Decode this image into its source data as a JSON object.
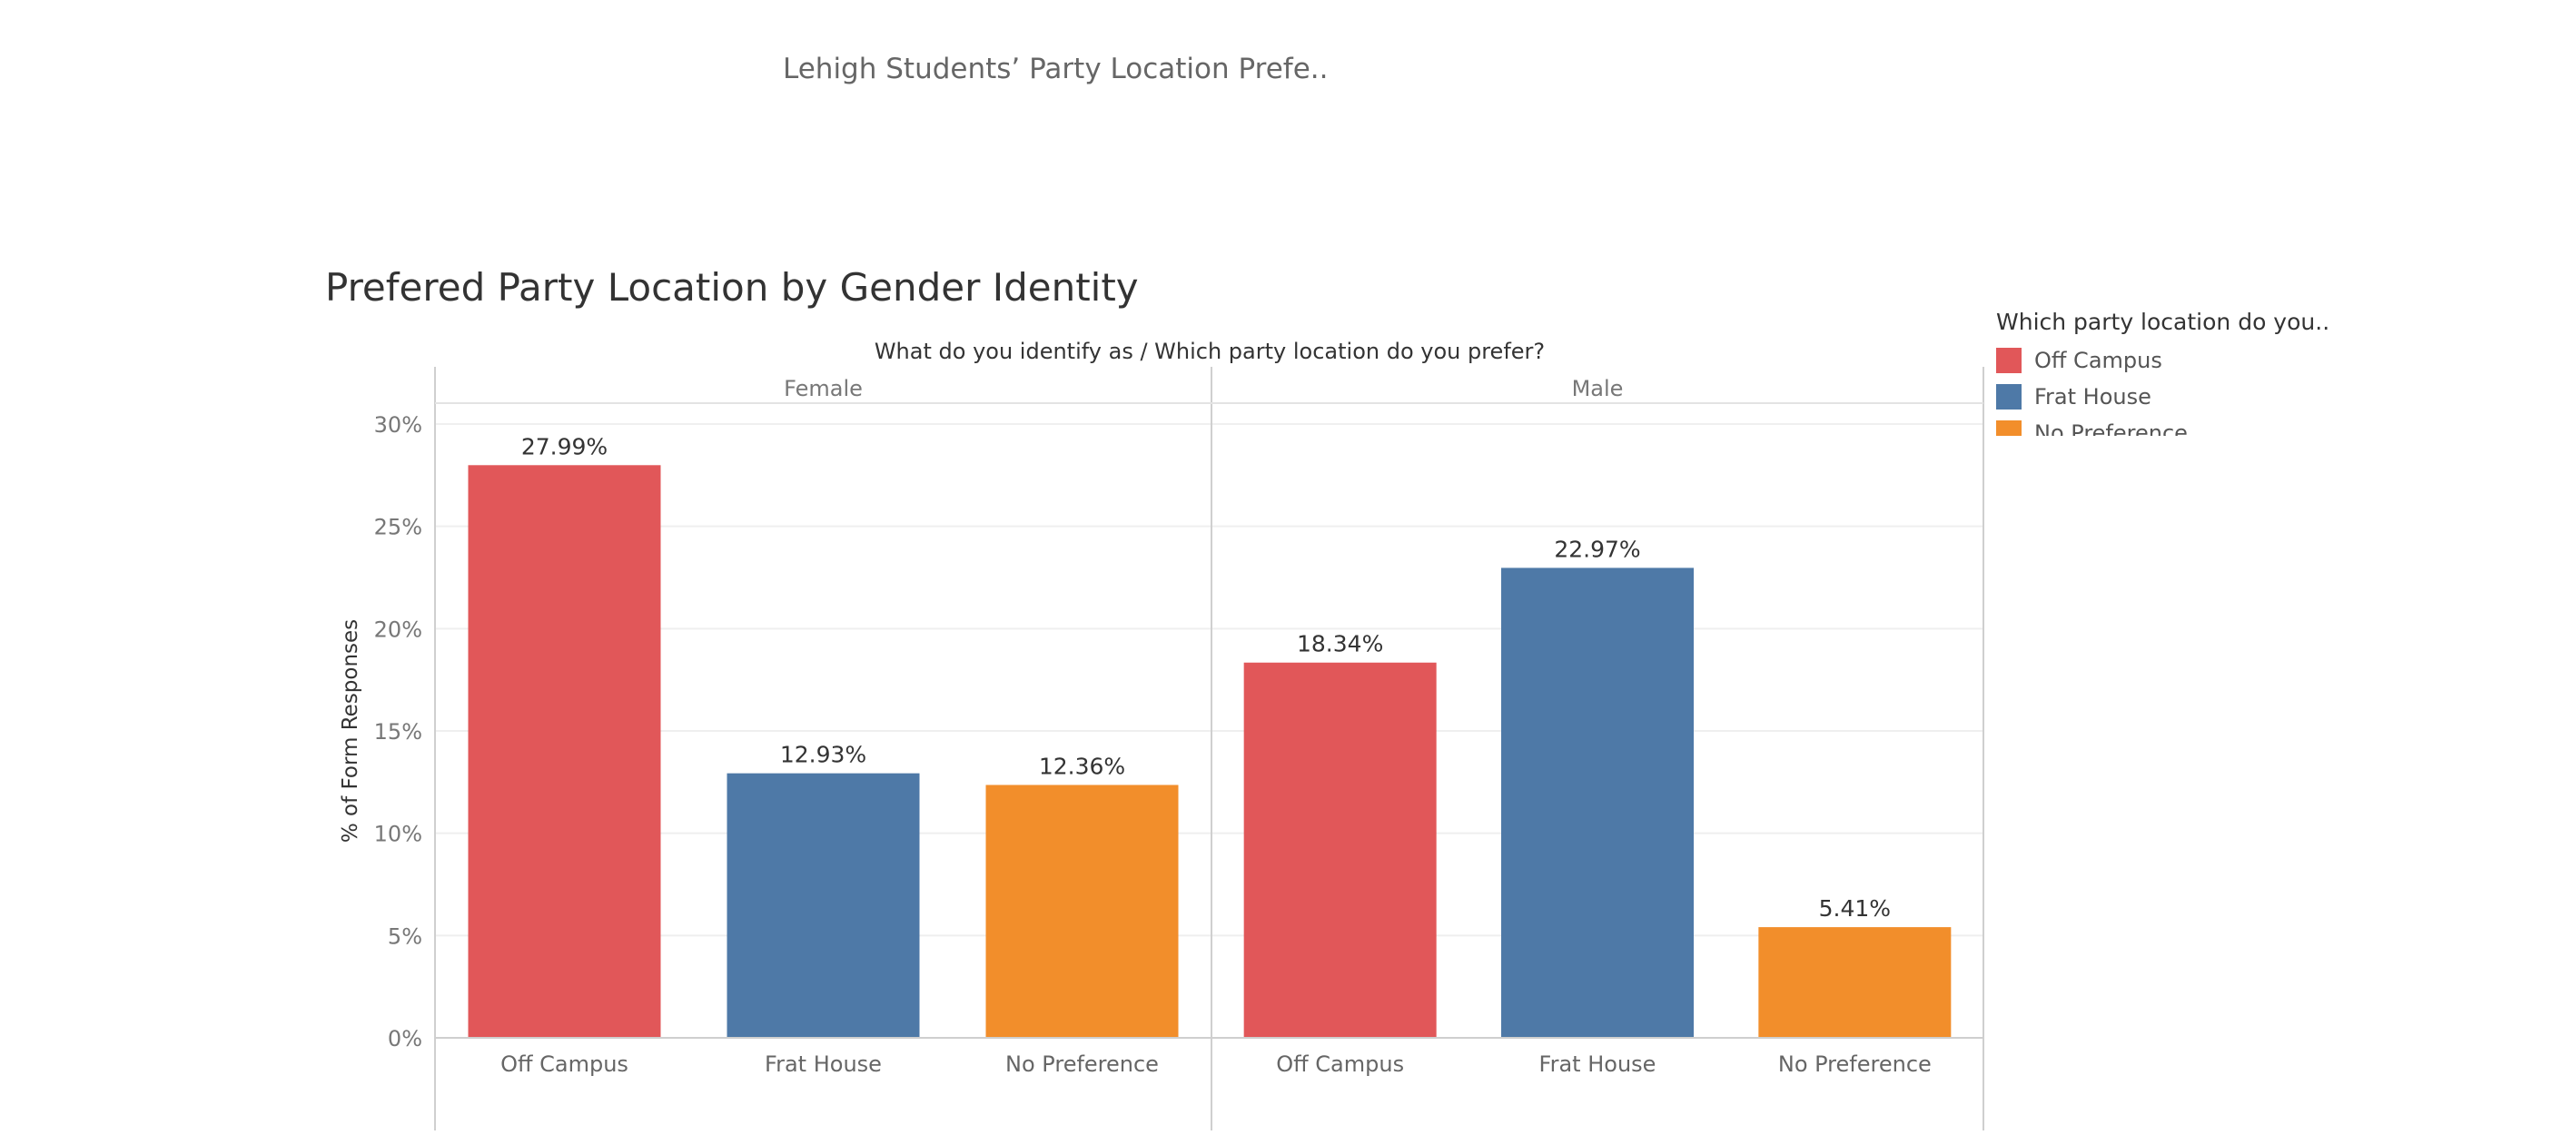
{
  "dashboard": {
    "title": "Lehigh Students’ Party Location Prefe.."
  },
  "sheet": {
    "title": "Prefered Party Location by Gender Identity"
  },
  "legend": {
    "title": "Which party location do you..",
    "items": [
      {
        "label": "Off Campus",
        "color": "#e15759"
      },
      {
        "label": "Frat House",
        "color": "#4e79a7"
      },
      {
        "label": "No Preference",
        "color": "#f28e2b"
      }
    ]
  },
  "chart_data": {
    "type": "bar",
    "title": "Prefered Party Location by Gender Identity",
    "header": "What do you identify as  /  Which party location do you prefer?",
    "ylabel": "% of Form Responses",
    "xlabel": "",
    "ylim": [
      0,
      30
    ],
    "yticks": [
      0,
      5,
      10,
      15,
      20,
      25,
      30
    ],
    "ytick_labels": [
      "0%",
      "5%",
      "10%",
      "15%",
      "20%",
      "25%",
      "30%"
    ],
    "grid": true,
    "legend_position": "top-right",
    "panels": [
      {
        "name": "Female",
        "categories": [
          "Off Campus",
          "Frat House",
          "No Preference"
        ],
        "values": [
          27.99,
          12.93,
          12.36
        ],
        "labels": [
          "27.99%",
          "12.93%",
          "12.36%"
        ]
      },
      {
        "name": "Male",
        "categories": [
          "Off Campus",
          "Frat House",
          "No Preference"
        ],
        "values": [
          18.34,
          22.97,
          5.41
        ],
        "labels": [
          "18.34%",
          "22.97%",
          "5.41%"
        ]
      }
    ],
    "colors": {
      "Off Campus": "#e15759",
      "Frat House": "#4e79a7",
      "No Preference": "#f28e2b"
    }
  }
}
